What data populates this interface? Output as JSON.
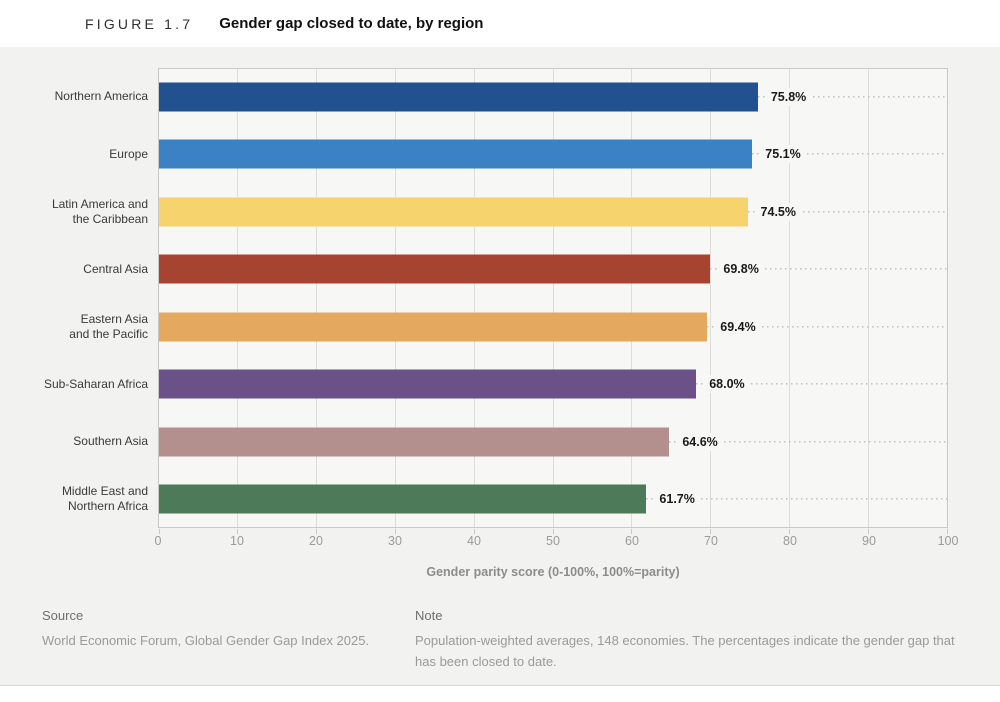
{
  "figure": {
    "label": "FIGURE 1.7",
    "title": "Gender gap closed to date, by region"
  },
  "chart_data": {
    "type": "bar",
    "orientation": "horizontal",
    "title": "Gender gap closed to date, by region",
    "categories": [
      "Northern America",
      "Europe",
      "Latin America and the Caribbean",
      "Central Asia",
      "Eastern Asia and the Pacific",
      "Sub-Saharan Africa",
      "Southern Asia",
      "Middle East and Northern Africa"
    ],
    "categories_display": [
      "Northern America",
      "Europe",
      "Latin America and\nthe Caribbean",
      "Central Asia",
      "Eastern Asia\nand the Pacific",
      "Sub-Saharan Africa",
      "Southern Asia",
      "Middle East and\nNorthern Africa"
    ],
    "values": [
      75.8,
      75.1,
      74.5,
      69.8,
      69.4,
      68.0,
      64.6,
      61.7
    ],
    "value_labels": [
      "75.8%",
      "75.1%",
      "74.5%",
      "69.8%",
      "69.4%",
      "68.0%",
      "64.6%",
      "61.7%"
    ],
    "bar_colors": [
      "#21518F",
      "#3B82C4",
      "#F6D36D",
      "#A64431",
      "#E4A85E",
      "#6A5187",
      "#B38F8E",
      "#4D7A58"
    ],
    "xlabel": "Gender parity score (0-100%, 100%=parity)",
    "xlim": [
      0,
      100
    ],
    "x_ticks": [
      0,
      10,
      20,
      30,
      40,
      50,
      60,
      70,
      80,
      90,
      100
    ],
    "grid": true,
    "legend": false
  },
  "footer": {
    "source_heading": "Source",
    "source_text": "World Economic Forum, Global Gender Gap Index 2025.",
    "note_heading": "Note",
    "note_text": "Population-weighted averages, 148 economies. The percentages indicate the gender gap that has been closed to date."
  },
  "colors": {
    "canvas_bg": "#f2f2f0",
    "plot_bg": "#f7f7f6",
    "gridline": "#dcdcda",
    "plot_border": "#c8c8c6",
    "leader_dots": "#c2c2c0",
    "category_label": "#3a3a3a",
    "value_label": "#1a1a1a",
    "tick_label": "#9b9b9b",
    "axis_title": "#8c8c8c"
  }
}
